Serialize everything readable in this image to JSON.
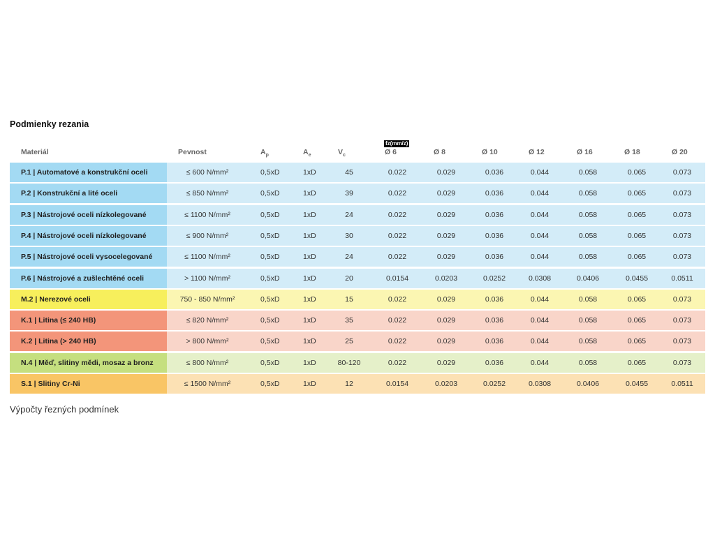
{
  "header": {
    "title": "Podmienky rezania",
    "fz_label": "fz(mm/z)",
    "columns": [
      {
        "main": "Materiál"
      },
      {
        "main": "Pevnost"
      },
      {
        "main": "A",
        "sub": "p"
      },
      {
        "main": "A",
        "sub": "e"
      },
      {
        "main": "V",
        "sub": "c"
      },
      {
        "main": "Ø 6"
      },
      {
        "main": "Ø 8"
      },
      {
        "main": "Ø 10"
      },
      {
        "main": "Ø 12"
      },
      {
        "main": "Ø 16"
      },
      {
        "main": "Ø 18"
      },
      {
        "main": "Ø 20"
      }
    ]
  },
  "table": {
    "rows": [
      {
        "tint": "#a3daf3",
        "shade": "#d3ecf8",
        "cells": [
          "P.1 | Automatové a konstrukční oceli",
          "≤ 600 N/mm²",
          "0,5xD",
          "1xD",
          "45",
          "0.022",
          "0.029",
          "0.036",
          "0.044",
          "0.058",
          "0.065",
          "0.073"
        ]
      },
      {
        "tint": "#a3daf3",
        "shade": "#d3ecf8",
        "cells": [
          "P.2 | Konstrukční a lité oceli",
          "≤ 850 N/mm²",
          "0,5xD",
          "1xD",
          "39",
          "0.022",
          "0.029",
          "0.036",
          "0.044",
          "0.058",
          "0.065",
          "0.073"
        ]
      },
      {
        "tint": "#a3daf3",
        "shade": "#d3ecf8",
        "cells": [
          "P.3 | Nástrojové oceli nízkolegované",
          "≤ 1100 N/mm²",
          "0,5xD",
          "1xD",
          "24",
          "0.022",
          "0.029",
          "0.036",
          "0.044",
          "0.058",
          "0.065",
          "0.073"
        ]
      },
      {
        "tint": "#a3daf3",
        "shade": "#d3ecf8",
        "cells": [
          "P.4 | Nástrojové oceli nízkolegované",
          "≤ 900 N/mm²",
          "0,5xD",
          "1xD",
          "30",
          "0.022",
          "0.029",
          "0.036",
          "0.044",
          "0.058",
          "0.065",
          "0.073"
        ]
      },
      {
        "tint": "#a3daf3",
        "shade": "#d3ecf8",
        "cells": [
          "P.5 | Nástrojové oceli vysocelegované",
          "≤ 1100 N/mm²",
          "0,5xD",
          "1xD",
          "24",
          "0.022",
          "0.029",
          "0.036",
          "0.044",
          "0.058",
          "0.065",
          "0.073"
        ]
      },
      {
        "tint": "#a3daf3",
        "shade": "#d3ecf8",
        "cells": [
          "P.6 | Nástrojové a zušlechtěné oceli",
          "> 1100 N/mm²",
          "0,5xD",
          "1xD",
          "20",
          "0.0154",
          "0.0203",
          "0.0252",
          "0.0308",
          "0.0406",
          "0.0455",
          "0.0511"
        ]
      },
      {
        "tint": "#f7ef5c",
        "shade": "#fbf6b2",
        "cells": [
          "M.2 | Nerezové oceli",
          "750 - 850 N/mm²",
          "0,5xD",
          "1xD",
          "15",
          "0.022",
          "0.029",
          "0.036",
          "0.044",
          "0.058",
          "0.065",
          "0.073"
        ]
      },
      {
        "tint": "#f3957a",
        "shade": "#f9d5c9",
        "cells": [
          "K.1 | Litina (≤ 240 HB)",
          "≤ 820 N/mm²",
          "0,5xD",
          "1xD",
          "35",
          "0.022",
          "0.029",
          "0.036",
          "0.044",
          "0.058",
          "0.065",
          "0.073"
        ]
      },
      {
        "tint": "#f3957a",
        "shade": "#f9d5c9",
        "cells": [
          "K.2 | Litina (> 240 HB)",
          "> 800 N/mm²",
          "0,5xD",
          "1xD",
          "25",
          "0.022",
          "0.029",
          "0.036",
          "0.044",
          "0.058",
          "0.065",
          "0.073"
        ]
      },
      {
        "tint": "#c5df7f",
        "shade": "#e5f0c9",
        "cells": [
          "N.4 | Měď, slitiny mědi, mosaz a bronz",
          "≤ 800 N/mm²",
          "0,5xD",
          "1xD",
          "80-120",
          "0.022",
          "0.029",
          "0.036",
          "0.044",
          "0.058",
          "0.065",
          "0.073"
        ]
      },
      {
        "tint": "#f9c565",
        "shade": "#fce1b4",
        "cells": [
          "S.1 | Slitiny Cr-Ni",
          "≤ 1500 N/mm²",
          "0,5xD",
          "1xD",
          "12",
          "0.0154",
          "0.0203",
          "0.0252",
          "0.0308",
          "0.0406",
          "0.0455",
          "0.0511"
        ]
      }
    ]
  },
  "caption": "Výpočty řezných podmínek"
}
